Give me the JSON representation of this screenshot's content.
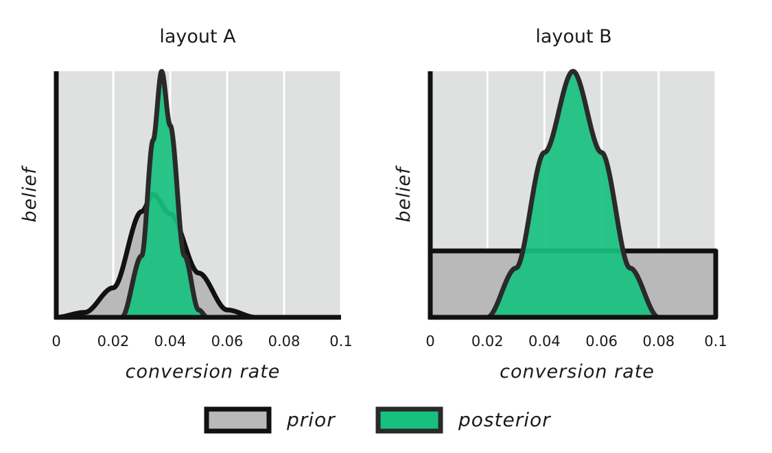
{
  "chart_data": [
    {
      "type": "area",
      "title": "layout A",
      "xlabel": "conversion rate",
      "ylabel": "belief",
      "xlim": [
        0,
        0.1
      ],
      "xticks": [
        "0",
        "0.02",
        "0.04",
        "0.06",
        "0.08",
        "0.1"
      ],
      "grid": true,
      "series": [
        {
          "name": "prior",
          "distribution": "beta",
          "x": [
            0.0,
            0.01,
            0.02,
            0.03,
            0.034,
            0.04,
            0.05,
            0.06,
            0.07
          ],
          "values": [
            0.0,
            0.02,
            0.12,
            0.43,
            0.5,
            0.42,
            0.18,
            0.03,
            0.0
          ]
        },
        {
          "name": "posterior",
          "distribution": "beta",
          "x": [
            0.023,
            0.03,
            0.034,
            0.037,
            0.04,
            0.045,
            0.05,
            0.053
          ],
          "values": [
            0.0,
            0.25,
            0.72,
            1.0,
            0.78,
            0.25,
            0.03,
            0.0
          ]
        }
      ]
    },
    {
      "type": "area",
      "title": "layout B",
      "xlabel": "conversion rate",
      "ylabel": "belief",
      "xlim": [
        0,
        0.1
      ],
      "xticks": [
        "0",
        "0.02",
        "0.04",
        "0.06",
        "0.08",
        "0.1"
      ],
      "grid": true,
      "series": [
        {
          "name": "prior",
          "distribution": "uniform",
          "x": [
            0.0,
            0.1
          ],
          "values": [
            0.27,
            0.27
          ]
        },
        {
          "name": "posterior",
          "distribution": "beta",
          "x": [
            0.02,
            0.03,
            0.04,
            0.05,
            0.06,
            0.07,
            0.08
          ],
          "values": [
            0.0,
            0.2,
            0.67,
            1.0,
            0.67,
            0.2,
            0.0
          ]
        }
      ]
    }
  ],
  "legend": {
    "placement": "bottom-center",
    "items": [
      "prior",
      "posterior"
    ]
  },
  "colors": {
    "prior": "#b9b9b9",
    "posterior": "#17c07f",
    "panel_bg": "#dfe0e0",
    "outline": "#111111",
    "posterior_outline": "#2a2a2a",
    "grid": "#ffffff"
  }
}
